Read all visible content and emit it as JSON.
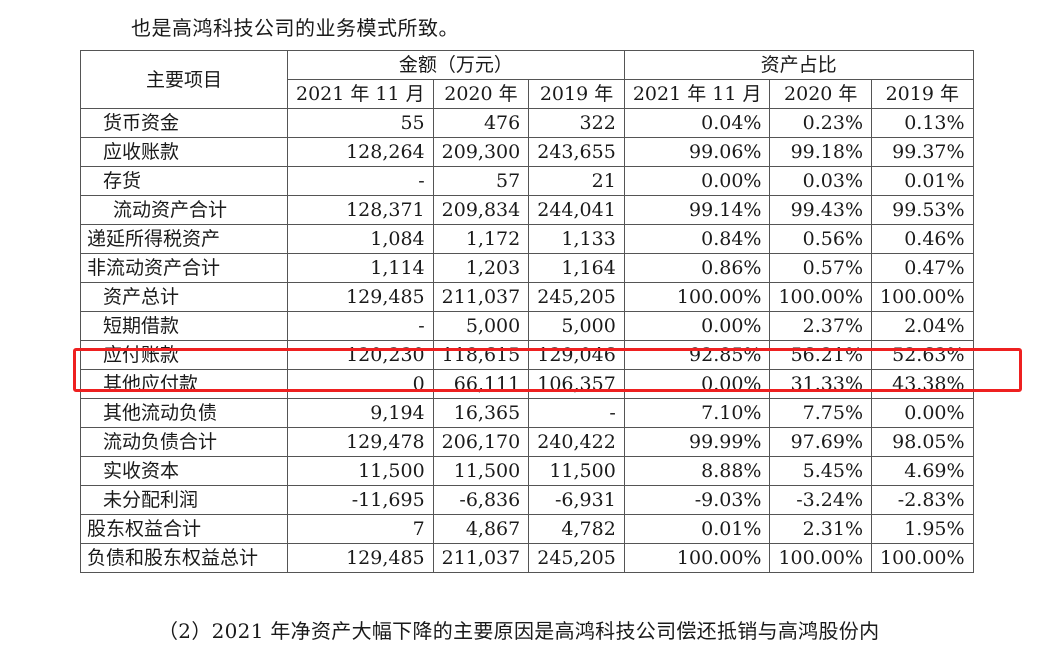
{
  "intro_text": "也是高鸿科技公司的业务模式所致。",
  "table": {
    "header": {
      "item_col": "主要项目",
      "amount_group": "金额（万元）",
      "ratio_group": "资产占比",
      "periods": [
        "2021 年 11 月",
        "2020 年",
        "2019 年"
      ]
    },
    "rows": [
      {
        "item": "货币资金",
        "indent": 1,
        "amounts": [
          "55",
          "476",
          "322"
        ],
        "ratios": [
          "0.04%",
          "0.23%",
          "0.13%"
        ]
      },
      {
        "item": "应收账款",
        "indent": 1,
        "amounts": [
          "128,264",
          "209,300",
          "243,655"
        ],
        "ratios": [
          "99.06%",
          "99.18%",
          "99.37%"
        ]
      },
      {
        "item": "存货",
        "indent": 1,
        "amounts": [
          "-",
          "57",
          "21"
        ],
        "ratios": [
          "0.00%",
          "0.03%",
          "0.01%"
        ]
      },
      {
        "item": "流动资产合计",
        "indent": 2,
        "amounts": [
          "128,371",
          "209,834",
          "244,041"
        ],
        "ratios": [
          "99.14%",
          "99.43%",
          "99.53%"
        ]
      },
      {
        "item": "递延所得税资产",
        "indent": 0,
        "amounts": [
          "1,084",
          "1,172",
          "1,133"
        ],
        "ratios": [
          "0.84%",
          "0.56%",
          "0.46%"
        ]
      },
      {
        "item": "非流动资产合计",
        "indent": 0,
        "amounts": [
          "1,114",
          "1,203",
          "1,164"
        ],
        "ratios": [
          "0.86%",
          "0.57%",
          "0.47%"
        ]
      },
      {
        "item": "资产总计",
        "indent": 1,
        "amounts": [
          "129,485",
          "211,037",
          "245,205"
        ],
        "ratios": [
          "100.00%",
          "100.00%",
          "100.00%"
        ]
      },
      {
        "item": "短期借款",
        "indent": 1,
        "amounts": [
          "-",
          "5,000",
          "5,000"
        ],
        "ratios": [
          "0.00%",
          "2.37%",
          "2.04%"
        ]
      },
      {
        "item": "应付账款",
        "indent": 1,
        "amounts": [
          "120,230",
          "118,615",
          "129,046"
        ],
        "ratios": [
          "92.85%",
          "56.21%",
          "52.63%"
        ],
        "highlighted": true
      },
      {
        "item": "其他应付款",
        "indent": 1,
        "amounts": [
          "0",
          "66,111",
          "106,357"
        ],
        "ratios": [
          "0.00%",
          "31.33%",
          "43.38%"
        ]
      },
      {
        "item": "其他流动负债",
        "indent": 1,
        "amounts": [
          "9,194",
          "16,365",
          "-"
        ],
        "ratios": [
          "7.10%",
          "7.75%",
          "0.00%"
        ]
      },
      {
        "item": "流动负债合计",
        "indent": 1,
        "amounts": [
          "129,478",
          "206,170",
          "240,422"
        ],
        "ratios": [
          "99.99%",
          "97.69%",
          "98.05%"
        ]
      },
      {
        "item": "实收资本",
        "indent": 1,
        "amounts": [
          "11,500",
          "11,500",
          "11,500"
        ],
        "ratios": [
          "8.88%",
          "5.45%",
          "4.69%"
        ]
      },
      {
        "item": "未分配利润",
        "indent": 1,
        "amounts": [
          "-11,695",
          "-6,836",
          "-6,931"
        ],
        "ratios": [
          "-9.03%",
          "-3.24%",
          "-2.83%"
        ]
      },
      {
        "item": "股东权益合计",
        "indent": 0,
        "amounts": [
          "7",
          "4,867",
          "4,782"
        ],
        "ratios": [
          "0.01%",
          "2.31%",
          "1.95%"
        ]
      },
      {
        "item": "负债和股东权益总计",
        "indent": 0,
        "amounts": [
          "129,485",
          "211,037",
          "245,205"
        ],
        "ratios": [
          "100.00%",
          "100.00%",
          "100.00%"
        ]
      }
    ]
  },
  "highlight": {
    "row_item": "应付账款",
    "color": "#ee2020"
  },
  "footer_text": "（2）2021 年净资产大幅下降的主要原因是高鸿科技公司偿还抵销与高鸿股份内"
}
